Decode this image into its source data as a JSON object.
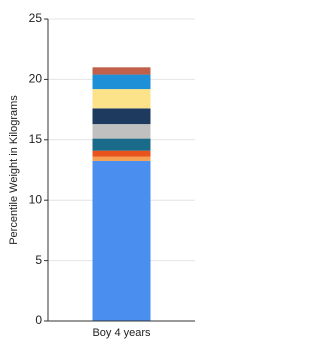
{
  "chart_data": {
    "type": "stacked-bar",
    "y_label": "Percentile Weight in Kilograms",
    "categories": [
      "Boy 4 years"
    ],
    "series": [
      {
        "color": "#4a8ef0",
        "values": [
          13.25
        ]
      },
      {
        "color": "#f5a050",
        "values": [
          0.35
        ]
      },
      {
        "color": "#e8541c",
        "values": [
          0.5
        ]
      },
      {
        "color": "#1a6b8a",
        "values": [
          1.0
        ]
      },
      {
        "color": "#c0c0c0",
        "values": [
          1.2
        ]
      },
      {
        "color": "#1e3a5f",
        "values": [
          1.3
        ]
      },
      {
        "color": "#fce38a",
        "values": [
          1.6
        ]
      },
      {
        "color": "#1e90d8",
        "values": [
          1.2
        ]
      },
      {
        "color": "#c0604a",
        "values": [
          0.6
        ]
      }
    ],
    "ylim": [
      0,
      25
    ],
    "yticks": [
      0,
      5,
      10,
      15,
      20,
      25
    ],
    "grid": true
  }
}
